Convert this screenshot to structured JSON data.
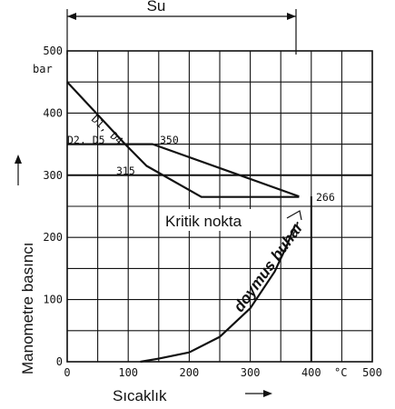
{
  "chart_data": {
    "type": "line",
    "title": "",
    "xlabel": "Sıcaklık",
    "ylabel": "Manometre basıncı",
    "x_unit": "°C",
    "y_unit": "bar",
    "xlim": [
      0,
      500
    ],
    "ylim": [
      0,
      500
    ],
    "x_ticks": [
      0,
      100,
      200,
      300,
      400,
      500
    ],
    "y_ticks": [
      0,
      100,
      200,
      300,
      400,
      500
    ],
    "x_tick_labels": [
      "0",
      "100",
      "200",
      "300",
      "400",
      "500"
    ],
    "y_tick_labels": [
      "0",
      "100",
      "200",
      "300",
      "400",
      "500"
    ],
    "grid": true,
    "series": [
      {
        "name": "D1, D4",
        "x": [
          0,
          95,
          130,
          220,
          380
        ],
        "y": [
          450,
          350,
          315,
          265,
          265
        ]
      },
      {
        "name": "D2, D5",
        "x": [
          0,
          140,
          380
        ],
        "y": [
          350,
          350,
          266
        ]
      },
      {
        "name": "doymus buhar",
        "x": [
          120,
          150,
          200,
          250,
          300,
          340,
          360,
          374
        ],
        "y": [
          0,
          5,
          15,
          40,
          86,
          145,
          187,
          221
        ]
      }
    ],
    "reference_lines": [
      {
        "axis": "y",
        "value": 300
      },
      {
        "axis": "x",
        "value": 400,
        "from_y": 0,
        "to_y": 266
      }
    ],
    "annotations": [
      "350",
      "315",
      "266",
      "Kritik nokta",
      "Su"
    ],
    "series_labels": [
      "D1, D4",
      "D2, D5",
      "doymus buhar"
    ]
  }
}
